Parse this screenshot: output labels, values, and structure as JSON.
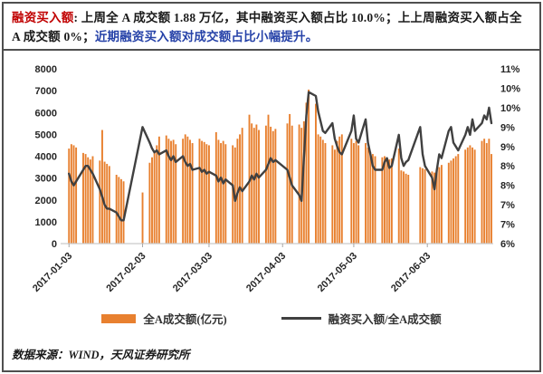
{
  "header": {
    "label": "融资买入额",
    "body": ": 上周全 A 成交额 1.88 万亿，其中融资买入额占比 10.0%；上上周融资买入额占全 A 成交额 0%；",
    "highlight": "近期融资买入额对成交额占比小幅提升。"
  },
  "footer": {
    "source": "数据来源：WIND，天风证券研究所"
  },
  "chart_data": {
    "type": "bar+line combo, daily data on a date axis",
    "grid": false,
    "legend_position": "bottom",
    "left_ylim": [
      0,
      8000
    ],
    "right_ylim": [
      6,
      10.5
    ],
    "left_axis_ticks": [
      "8000",
      "7000",
      "6000",
      "5000",
      "4000",
      "3000",
      "2000",
      "1000",
      "0"
    ],
    "right_axis_ticks": [
      "11%",
      "10%",
      "10%",
      "9%",
      "9%",
      "8%",
      "8%",
      "7%",
      "7%",
      "6%"
    ],
    "x_ticks": [
      "2017-01-03",
      "2017-02-03",
      "2017-03-03",
      "2017-04-03",
      "2017-05-03",
      "2017-06-03"
    ],
    "x": [
      "2017-01-03",
      "2017-01-04",
      "2017-01-05",
      "2017-01-06",
      "2017-01-09",
      "2017-01-10",
      "2017-01-11",
      "2017-01-12",
      "2017-01-13",
      "2017-01-16",
      "2017-01-17",
      "2017-01-18",
      "2017-01-19",
      "2017-01-20",
      "2017-01-23",
      "2017-01-24",
      "2017-01-25",
      "2017-01-26",
      "2017-02-03",
      "2017-02-06",
      "2017-02-07",
      "2017-02-08",
      "2017-02-09",
      "2017-02-10",
      "2017-02-13",
      "2017-02-14",
      "2017-02-15",
      "2017-02-16",
      "2017-02-17",
      "2017-02-20",
      "2017-02-21",
      "2017-02-22",
      "2017-02-23",
      "2017-02-24",
      "2017-02-27",
      "2017-02-28",
      "2017-03-01",
      "2017-03-02",
      "2017-03-03",
      "2017-03-06",
      "2017-03-07",
      "2017-03-08",
      "2017-03-09",
      "2017-03-10",
      "2017-03-13",
      "2017-03-14",
      "2017-03-15",
      "2017-03-16",
      "2017-03-17",
      "2017-03-20",
      "2017-03-21",
      "2017-03-22",
      "2017-03-23",
      "2017-03-24",
      "2017-03-27",
      "2017-03-28",
      "2017-03-29",
      "2017-03-30",
      "2017-03-31",
      "2017-04-05",
      "2017-04-06",
      "2017-04-07",
      "2017-04-10",
      "2017-04-11",
      "2017-04-12",
      "2017-04-13",
      "2017-04-14",
      "2017-04-17",
      "2017-04-18",
      "2017-04-19",
      "2017-04-20",
      "2017-04-21",
      "2017-04-24",
      "2017-04-25",
      "2017-04-26",
      "2017-04-27",
      "2017-04-28",
      "2017-05-02",
      "2017-05-03",
      "2017-05-04",
      "2017-05-05",
      "2017-05-08",
      "2017-05-09",
      "2017-05-10",
      "2017-05-11",
      "2017-05-12",
      "2017-05-15",
      "2017-05-16",
      "2017-05-17",
      "2017-05-18",
      "2017-05-19",
      "2017-05-22",
      "2017-05-23",
      "2017-05-24",
      "2017-05-25",
      "2017-05-26",
      "2017-05-31",
      "2017-06-01",
      "2017-06-02",
      "2017-06-05",
      "2017-06-06",
      "2017-06-07",
      "2017-06-08",
      "2017-06-09",
      "2017-06-12",
      "2017-06-13",
      "2017-06-14",
      "2017-06-15",
      "2017-06-16",
      "2017-06-19",
      "2017-06-20",
      "2017-06-21",
      "2017-06-22",
      "2017-06-23",
      "2017-06-26",
      "2017-06-27",
      "2017-06-28",
      "2017-06-29",
      "2017-06-30"
    ],
    "series": [
      {
        "name": "全A成交额(亿元)",
        "type": "bar",
        "axis": "left",
        "color": "#E8802F",
        "values": [
          4350,
          4550,
          4500,
          4400,
          4150,
          4100,
          3950,
          3850,
          4000,
          3800,
          5200,
          3750,
          3650,
          3550,
          3150,
          3050,
          2950,
          2850,
          2340,
          3700,
          3950,
          4250,
          4500,
          4900,
          4950,
          4800,
          4700,
          4750,
          4550,
          4800,
          5000,
          4900,
          4750,
          4600,
          4800,
          4700,
          4650,
          4550,
          4500,
          5100,
          4750,
          4600,
          4700,
          4550,
          4500,
          4400,
          4800,
          5000,
          5300,
          5900,
          5500,
          5300,
          5450,
          5200,
          5400,
          5900,
          5350,
          5150,
          5250,
          5500,
          5930,
          5400,
          5450,
          5300,
          5600,
          6450,
          7050,
          6400,
          5000,
          4900,
          4750,
          4600,
          4500,
          4300,
          4700,
          4900,
          5000,
          4800,
          4600,
          4700,
          4500,
          4600,
          4400,
          4200,
          4100,
          4000,
          3950,
          4000,
          3900,
          3850,
          3900,
          4350,
          3350,
          3300,
          3200,
          3150,
          3500,
          3450,
          3400,
          3300,
          3250,
          3400,
          3500,
          3600,
          3700,
          3800,
          3900,
          4000,
          4100,
          4300,
          4400,
          4500,
          4400,
          4300,
          4700,
          4800,
          4600,
          4800,
          4100
        ]
      },
      {
        "name": "融资买入额/全A成交额",
        "type": "line",
        "axis": "right",
        "color": "#404040",
        "values": [
          7.8,
          7.6,
          7.5,
          7.6,
          7.9,
          8.0,
          8.0,
          7.9,
          7.8,
          7.4,
          7.2,
          7.0,
          6.9,
          6.9,
          6.8,
          6.7,
          6.6,
          6.6,
          9.0,
          8.6,
          8.45,
          8.35,
          8.4,
          8.3,
          8.4,
          8.25,
          8.15,
          8.25,
          8.1,
          8.25,
          8.1,
          8.0,
          8.05,
          7.9,
          7.95,
          7.85,
          7.9,
          7.8,
          7.85,
          7.75,
          7.6,
          7.7,
          7.55,
          7.65,
          7.5,
          7.1,
          7.3,
          7.45,
          7.35,
          7.6,
          7.75,
          7.65,
          7.8,
          7.7,
          7.9,
          8.05,
          8.2,
          8.1,
          8.15,
          7.9,
          7.7,
          7.5,
          7.25,
          7.1,
          8.2,
          9.3,
          9.9,
          9.8,
          9.4,
          9.15,
          8.9,
          8.85,
          9.1,
          8.7,
          8.5,
          8.35,
          8.3,
          8.9,
          9.3,
          8.7,
          8.6,
          9.2,
          8.6,
          8.3,
          8.0,
          7.9,
          7.9,
          8.1,
          8.2,
          7.95,
          8.0,
          8.8,
          8.2,
          8.0,
          8.1,
          8.15,
          9.0,
          8.3,
          8.0,
          7.7,
          7.4,
          7.9,
          8.3,
          8.2,
          8.9,
          9.0,
          8.6,
          8.5,
          8.4,
          8.8,
          9.0,
          8.8,
          9.2,
          8.9,
          9.1,
          9.3,
          9.2,
          9.5,
          9.1
        ]
      }
    ]
  }
}
